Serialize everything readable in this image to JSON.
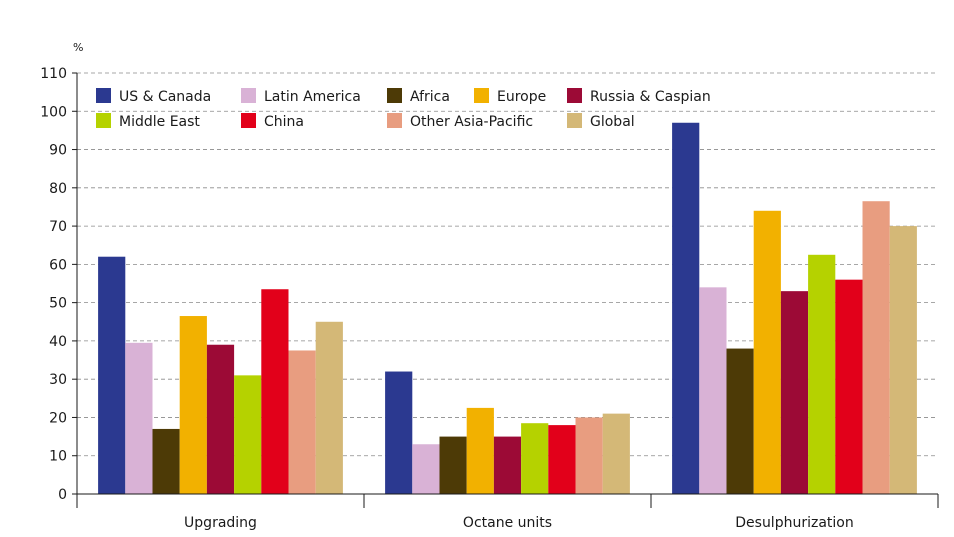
{
  "chart_data": {
    "type": "bar",
    "ylabel": "%",
    "ylim": [
      0,
      110
    ],
    "yticks": [
      0,
      10,
      20,
      30,
      40,
      50,
      60,
      70,
      80,
      90,
      100,
      110
    ],
    "grid": "horizontal-dashed",
    "legend_position": "top-left",
    "categories": [
      "Upgrading",
      "Octane units",
      "Desulphurization"
    ],
    "series": [
      {
        "name": "US & Canada",
        "color": "#2b3990",
        "values": [
          62,
          32,
          97
        ]
      },
      {
        "name": "Latin America",
        "color": "#d9b2d6",
        "values": [
          39.5,
          13,
          54
        ]
      },
      {
        "name": "Africa",
        "color": "#4d3a06",
        "values": [
          17,
          15,
          38
        ]
      },
      {
        "name": "Europe",
        "color": "#f2b100",
        "values": [
          46.5,
          22.5,
          74
        ]
      },
      {
        "name": "Russia & Caspian",
        "color": "#9c0a36",
        "values": [
          39,
          15,
          53
        ]
      },
      {
        "name": "Middle East",
        "color": "#b5d200",
        "values": [
          31,
          18.5,
          62.5
        ]
      },
      {
        "name": "China",
        "color": "#e2001a",
        "values": [
          53.5,
          18,
          56
        ]
      },
      {
        "name": "Other Asia-Pacific",
        "color": "#e89d80",
        "values": [
          37.5,
          20,
          76.5
        ]
      },
      {
        "name": "Global",
        "color": "#d4b877",
        "values": [
          45,
          21,
          70
        ]
      }
    ]
  }
}
